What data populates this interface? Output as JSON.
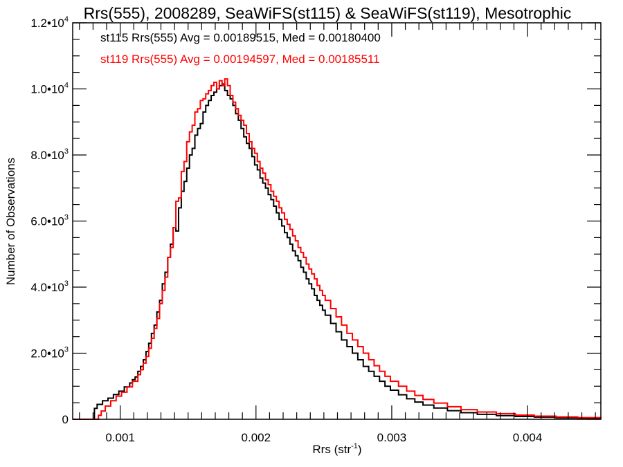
{
  "chart_data": {
    "type": "line",
    "style": "histogram-step",
    "title": "Rrs(555), 2008289, SeaWiFS(st115) & SeaWiFS(st119), Mesotrophic",
    "xlabel": "Rrs (str",
    "xlabel_superscript": "-1",
    "xlabel_suffix": ")",
    "ylabel": "Number of Observations",
    "xlim": [
      0.00065,
      0.00454
    ],
    "ylim": [
      0,
      12000
    ],
    "grid": false,
    "x_ticks": [
      {
        "value": 0.001,
        "label": "0.001"
      },
      {
        "value": 0.002,
        "label": "0.002"
      },
      {
        "value": 0.003,
        "label": "0.003"
      },
      {
        "value": 0.004,
        "label": "0.004"
      }
    ],
    "x_minor_step": 0.0001,
    "y_ticks": [
      {
        "value": 0,
        "mantissa": "0",
        "exp": ""
      },
      {
        "value": 2000,
        "mantissa": "2.0•10",
        "exp": "3"
      },
      {
        "value": 4000,
        "mantissa": "4.0•10",
        "exp": "3"
      },
      {
        "value": 6000,
        "mantissa": "6.0•10",
        "exp": "3"
      },
      {
        "value": 8000,
        "mantissa": "8.0•10",
        "exp": "3"
      },
      {
        "value": 10000,
        "mantissa": "1.0•10",
        "exp": "4"
      },
      {
        "value": 12000,
        "mantissa": "1.2•10",
        "exp": "4"
      }
    ],
    "y_minor_step": 500,
    "annotations": [
      {
        "text": "st115 Rrs(555) Avg = 0.00189515, Med = 0.00180400",
        "color": "#000000"
      },
      {
        "text": "st119 Rrs(555) Avg = 0.00194597, Med = 0.00185511",
        "color": "#ff0000"
      }
    ],
    "series": [
      {
        "name": "st115",
        "color": "#000000",
        "x": [
          0.00065,
          0.00081,
          0.00083,
          0.00087,
          0.00091,
          0.00095,
          0.00099,
          0.00103,
          0.00107,
          0.00109,
          0.00111,
          0.00113,
          0.00115,
          0.00117,
          0.00119,
          0.00121,
          0.00123,
          0.00125,
          0.00127,
          0.00129,
          0.00131,
          0.00133,
          0.00135,
          0.00137,
          0.00139,
          0.00141,
          0.00143,
          0.00145,
          0.00147,
          0.00149,
          0.00151,
          0.00153,
          0.00155,
          0.00157,
          0.00159,
          0.00161,
          0.00163,
          0.00165,
          0.00167,
          0.00169,
          0.00171,
          0.00173,
          0.00175,
          0.00177,
          0.00179,
          0.00181,
          0.00183,
          0.00185,
          0.00187,
          0.00189,
          0.00191,
          0.00193,
          0.00195,
          0.00197,
          0.00199,
          0.00201,
          0.00203,
          0.00205,
          0.00207,
          0.00209,
          0.00211,
          0.00213,
          0.00215,
          0.00217,
          0.00219,
          0.00221,
          0.00223,
          0.00225,
          0.00227,
          0.00229,
          0.00231,
          0.00233,
          0.00235,
          0.00237,
          0.00239,
          0.00241,
          0.00243,
          0.00245,
          0.00247,
          0.00249,
          0.00251,
          0.00255,
          0.00259,
          0.00263,
          0.00267,
          0.00271,
          0.00275,
          0.00279,
          0.00283,
          0.00287,
          0.00291,
          0.00295,
          0.00299,
          0.00305,
          0.00311,
          0.00317,
          0.00323,
          0.00331,
          0.00341,
          0.00351,
          0.00363,
          0.00377,
          0.00391,
          0.00405,
          0.00421,
          0.00437,
          0.00454
        ],
        "values": [
          0,
          330,
          450,
          560,
          640,
          750,
          850,
          980,
          1100,
          1200,
          1280,
          1450,
          1600,
          1800,
          2050,
          2300,
          2600,
          2850,
          3250,
          3600,
          4100,
          4450,
          4900,
          5300,
          5800,
          5700,
          6400,
          6900,
          7200,
          7600,
          8000,
          8200,
          8600,
          8800,
          8950,
          9300,
          9500,
          9650,
          9800,
          9900,
          10000,
          10100,
          10150,
          9950,
          9800,
          9700,
          9500,
          9250,
          9050,
          8800,
          8550,
          8350,
          8200,
          7950,
          7700,
          7550,
          7300,
          7150,
          7000,
          6800,
          6650,
          6450,
          6250,
          6050,
          5850,
          5650,
          5500,
          5300,
          5100,
          4950,
          4800,
          4600,
          4450,
          4250,
          4100,
          3950,
          3750,
          3600,
          3450,
          3300,
          3150,
          2900,
          2650,
          2400,
          2200,
          2000,
          1800,
          1600,
          1450,
          1300,
          1150,
          1000,
          880,
          740,
          620,
          520,
          430,
          340,
          260,
          200,
          150,
          110,
          85,
          65,
          45,
          30,
          20
        ],
        "bin_edges_note": "step histogram; x are left bin edges"
      },
      {
        "name": "st119",
        "color": "#ff0000",
        "x": [
          0.00065,
          0.00084,
          0.00086,
          0.00089,
          0.00093,
          0.00097,
          0.00101,
          0.00105,
          0.00109,
          0.00113,
          0.00115,
          0.00117,
          0.00119,
          0.00121,
          0.00123,
          0.00125,
          0.00127,
          0.00129,
          0.00131,
          0.00133,
          0.00135,
          0.00137,
          0.00139,
          0.00141,
          0.00143,
          0.00145,
          0.00147,
          0.00149,
          0.00151,
          0.00153,
          0.00155,
          0.00157,
          0.00159,
          0.00161,
          0.00163,
          0.00165,
          0.00167,
          0.00169,
          0.00171,
          0.00173,
          0.00175,
          0.00177,
          0.00179,
          0.00181,
          0.00183,
          0.00185,
          0.00187,
          0.00189,
          0.00191,
          0.00193,
          0.00195,
          0.00197,
          0.00199,
          0.00201,
          0.00203,
          0.00205,
          0.00207,
          0.00209,
          0.00211,
          0.00213,
          0.00215,
          0.00217,
          0.00219,
          0.00221,
          0.00223,
          0.00225,
          0.00227,
          0.00229,
          0.00231,
          0.00233,
          0.00235,
          0.00237,
          0.00239,
          0.00241,
          0.00243,
          0.00245,
          0.00247,
          0.00249,
          0.00251,
          0.00255,
          0.00259,
          0.00263,
          0.00267,
          0.00271,
          0.00275,
          0.00279,
          0.00283,
          0.00287,
          0.00291,
          0.00295,
          0.00299,
          0.00305,
          0.00311,
          0.00317,
          0.00323,
          0.00331,
          0.00341,
          0.00351,
          0.00363,
          0.00377,
          0.00391,
          0.00405,
          0.00421,
          0.00437,
          0.00454
        ],
        "values": [
          0,
          120,
          250,
          400,
          560,
          700,
          820,
          980,
          1150,
          1350,
          1500,
          1700,
          1900,
          2150,
          2450,
          2750,
          3050,
          3500,
          3900,
          4300,
          4900,
          5200,
          5800,
          6600,
          6700,
          7500,
          7800,
          8400,
          8700,
          8900,
          9300,
          9400,
          9650,
          9700,
          9850,
          9950,
          10100,
          10200,
          10000,
          10250,
          10100,
          10300,
          10100,
          9800,
          9600,
          9400,
          9200,
          9050,
          8900,
          8650,
          8400,
          8200,
          8050,
          7800,
          7600,
          7450,
          7250,
          7100,
          6900,
          6750,
          6600,
          6400,
          6250,
          6050,
          5900,
          5750,
          5550,
          5400,
          5200,
          5050,
          4900,
          4700,
          4550,
          4400,
          4250,
          4050,
          3900,
          3750,
          3600,
          3350,
          3100,
          2850,
          2600,
          2400,
          2200,
          2000,
          1800,
          1620,
          1450,
          1300,
          1150,
          1000,
          850,
          720,
          600,
          490,
          380,
          290,
          220,
          170,
          125,
          95,
          70,
          50,
          35
        ],
        "bin_edges_note": "step histogram; x are left bin edges"
      }
    ]
  }
}
